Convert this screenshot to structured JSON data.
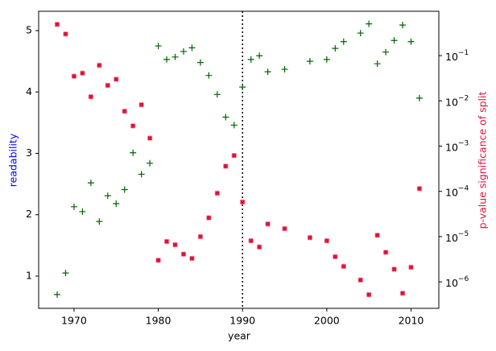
{
  "chart_data": {
    "type": "scatter",
    "x_label": "year",
    "y_label": "readability",
    "y_label_color": "#0000ff",
    "y2_label": "p-value significance of split",
    "y2_label_color": "#dc143c",
    "xlim": [
      1965.8,
      2013.3
    ],
    "xticks": [
      1970,
      1980,
      1990,
      2000,
      2010
    ],
    "ylim": [
      0.475,
      5.315
    ],
    "yticks": [
      1,
      2,
      3,
      4,
      5
    ],
    "y2lim": [
      2.6e-07,
      0.955
    ],
    "y2scale": "log",
    "y2ticks": [
      {
        "value": 0.1,
        "label": "10^−1"
      },
      {
        "value": 0.01,
        "label": "10^−2"
      },
      {
        "value": 0.001,
        "label": "10^−3"
      },
      {
        "value": 0.0001,
        "label": "10^−4"
      },
      {
        "value": 1e-05,
        "label": "10^−5"
      },
      {
        "value": 1e-06,
        "label": "10^−6"
      }
    ],
    "vline": 1990,
    "x": [
      1968,
      1969,
      1970,
      1971,
      1972,
      1973,
      1974,
      1975,
      1976,
      1977,
      1978,
      1979,
      1980,
      1981,
      1982,
      1983,
      1984,
      1985,
      1986,
      1987,
      1988,
      1989,
      1990,
      1991,
      1992,
      1993,
      1995,
      1998,
      2000,
      2001,
      2002,
      2004,
      2005,
      2006,
      2007,
      2008,
      2009,
      2010,
      2011
    ],
    "series": [
      {
        "color": "#006400",
        "marker": "plus",
        "axis": "y",
        "values": [
          0.7,
          1.05,
          2.13,
          2.05,
          2.52,
          1.89,
          2.31,
          2.18,
          2.41,
          3.01,
          2.66,
          2.84,
          4.75,
          4.53,
          4.57,
          4.66,
          4.72,
          4.48,
          4.27,
          3.96,
          3.59,
          3.46,
          4.08,
          4.53,
          4.59,
          4.33,
          4.37,
          4.5,
          4.53,
          4.71,
          4.82,
          4.96,
          5.11,
          4.46,
          4.65,
          4.84,
          5.09,
          4.82,
          3.9
        ]
      },
      {
        "color": "#dc143c",
        "marker": "square",
        "axis": "y2",
        "values": [
          0.49,
          0.3,
          0.035,
          0.041,
          0.0123,
          0.061,
          0.022,
          0.03,
          0.0059,
          0.0028,
          0.0082,
          0.0015,
          3e-06,
          7.8e-06,
          6.6e-06,
          4.1e-06,
          3.3e-06,
          1e-05,
          2.6e-05,
          9.1e-05,
          0.00036,
          0.00062,
          5.8e-05,
          8.1e-06,
          5.9e-06,
          1.9e-05,
          1.5e-05,
          9.5e-06,
          8.1e-06,
          3.6e-06,
          2.2e-06,
          1.1e-06,
          5.2e-07,
          1.07e-05,
          4.5e-06,
          1.9e-06,
          5.6e-07,
          2.1e-06,
          0.000115
        ]
      }
    ]
  }
}
